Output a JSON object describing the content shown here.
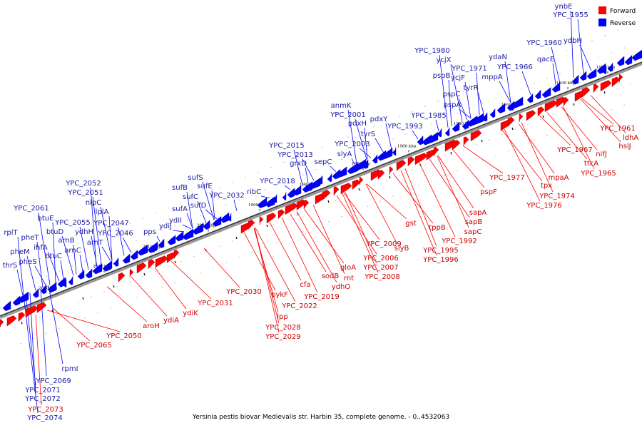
{
  "caption": "Yersinia pestis biovar Medievalis str. Harbin 35, complete genome. - 0..4532063",
  "colors": {
    "forward": "#ff0000",
    "reverse": "#0000ff",
    "forward_label": "#cc0000",
    "reverse_label": "#1a1aa8"
  },
  "legend": {
    "forward": "Forward",
    "reverse": "Reverse"
  },
  "ticks": [
    "1920 kbp",
    "1930 kbp",
    "1940 kbp",
    "1950 kbp",
    "1960 kbp",
    "1970 kbp",
    "1980 kbp",
    "1990 kbp",
    "2000 kbp",
    "2010 kbp",
    "2020 kbp",
    "2030 kbp"
  ],
  "reverse_labels": [
    "ynbE",
    "YPC_1955",
    "YPC_1960",
    "ydbH",
    "qacE",
    "ydaN",
    "YPC_1966",
    "mppA",
    "YPC_1971",
    "tyrR",
    "YPC_1980",
    "ycjX",
    "pspB",
    "ycjF",
    "pspC",
    "pspA",
    "YPC_1985",
    "YPC_1993",
    "anmK",
    "YPC_2001",
    "pdxH",
    "pdxY",
    "tyrS",
    "YPC_2003",
    "slyA",
    "sepC",
    "YPC_2015",
    "YPC_2013",
    "grxD",
    "YPC_2018",
    "ribC",
    "sufS",
    "sufE",
    "sufB",
    "sufC",
    "sufD",
    "YPC_2032",
    "sufA",
    "ydiI",
    "ydiJ",
    "pps",
    "YPC_2052",
    "YPC_2051",
    "nlpC",
    "lplA",
    "YPC_2047",
    "YPC_2046",
    "YPC_2061",
    "btuE",
    "pheT",
    "YPC_2055",
    "btuD",
    "arnB",
    "ydhH",
    "arnT",
    "ihfA",
    "arnC",
    "rplT",
    "pheM",
    "pheS",
    "btuC",
    "thrS",
    "YPC_2069",
    "rpmI",
    "YPC_2071",
    "YPC_2072",
    "YPC_2074"
  ],
  "forward_labels": [
    "YPC_1961",
    "ldhA",
    "hslJ",
    "YPC_1967",
    "nifJ",
    "ttcA",
    "YPC_1965",
    "mpaA",
    "tpx",
    "YPC_1974",
    "YPC_1976",
    "YPC_1977",
    "pspF",
    "sapA",
    "sapB",
    "sapC",
    "YPC_1992",
    "tppB",
    "YPC_1995",
    "YPC_1996",
    "gst",
    "slyB",
    "YPC_2009",
    "YPC_2006",
    "YPC_2007",
    "YPC_2008",
    "gloA",
    "rnt",
    "sodB",
    "ydhO",
    "cfa",
    "YPC_2019",
    "YPC_2022",
    "pykF",
    "YPC_2030",
    "YPC_2031",
    "lpp",
    "YPC_2028",
    "YPC_2029",
    "ydiK",
    "ydiA",
    "aroH",
    "YPC_2050",
    "YPC_2065",
    "YPC_2073"
  ]
}
